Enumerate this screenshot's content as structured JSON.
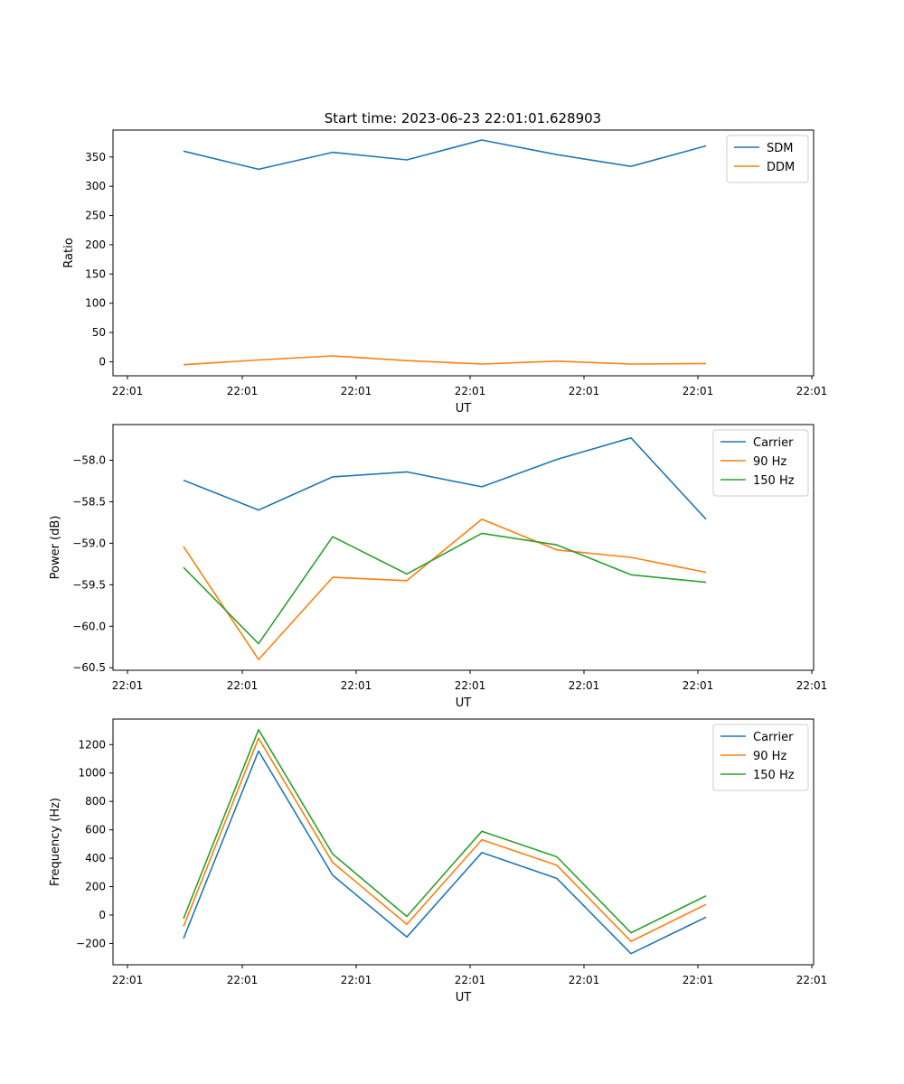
{
  "figure": {
    "title": "Start time: 2023-06-23 22:01:01.628903"
  },
  "chart_data": [
    {
      "type": "line",
      "title": "Start time: 2023-06-23 22:01:01.628903",
      "xlabel": "UT",
      "ylabel": "Ratio",
      "x_tick_labels": [
        "22:01",
        "22:01",
        "22:01",
        "22:01",
        "22:01",
        "22:01",
        "22:01"
      ],
      "y_ticks": [
        0,
        50,
        100,
        150,
        200,
        250,
        300,
        350
      ],
      "ylim": [
        -24,
        396
      ],
      "grid": false,
      "legend_position": "top-right",
      "series": [
        {
          "name": "SDM",
          "color": "#1f77b4",
          "values": [
            360,
            329,
            358,
            345,
            379,
            354,
            334,
            369
          ]
        },
        {
          "name": "DDM",
          "color": "#ff7f0e",
          "values": [
            -5,
            3,
            10,
            2,
            -4,
            1,
            -4,
            -3
          ]
        }
      ]
    },
    {
      "type": "line",
      "title": "",
      "xlabel": "UT",
      "ylabel": "Power (dB)",
      "x_tick_labels": [
        "22:01",
        "22:01",
        "22:01",
        "22:01",
        "22:01",
        "22:01",
        "22:01"
      ],
      "y_ticks": [
        -60.5,
        -60.0,
        -59.5,
        -59.0,
        -58.5,
        -58.0
      ],
      "y_tick_labels": [
        "−60.5",
        "−60.0",
        "−59.5",
        "−59.0",
        "−58.5",
        "−58.0"
      ],
      "ylim": [
        -60.53,
        -57.57
      ],
      "grid": false,
      "legend_position": "top-right",
      "series": [
        {
          "name": "Carrier",
          "color": "#1f77b4",
          "values": [
            -58.24,
            -58.6,
            -58.2,
            -58.14,
            -58.32,
            -57.99,
            -57.73,
            -58.71
          ]
        },
        {
          "name": "90 Hz",
          "color": "#ff7f0e",
          "values": [
            -59.04,
            -60.4,
            -59.41,
            -59.45,
            -58.71,
            -59.08,
            -59.17,
            -59.35
          ]
        },
        {
          "name": "150 Hz",
          "color": "#2ca02c",
          "values": [
            -59.29,
            -60.21,
            -58.92,
            -59.37,
            -58.88,
            -59.02,
            -59.38,
            -59.47
          ]
        }
      ]
    },
    {
      "type": "line",
      "title": "",
      "xlabel": "UT",
      "ylabel": "Frequency (Hz)",
      "x_tick_labels": [
        "22:01",
        "22:01",
        "22:01",
        "22:01",
        "22:01",
        "22:01",
        "22:01"
      ],
      "y_ticks": [
        -200,
        0,
        200,
        400,
        600,
        800,
        1000,
        1200
      ],
      "y_tick_labels": [
        "−200",
        "0",
        "200",
        "400",
        "600",
        "800",
        "1000",
        "1200"
      ],
      "ylim": [
        -350,
        1380
      ],
      "grid": false,
      "legend_position": "top-right",
      "series": [
        {
          "name": "Carrier",
          "color": "#1f77b4",
          "values": [
            -165,
            1155,
            280,
            -155,
            440,
            258,
            -272,
            -15
          ]
        },
        {
          "name": "90 Hz",
          "color": "#ff7f0e",
          "values": [
            -80,
            1245,
            370,
            -65,
            530,
            350,
            -185,
            75
          ]
        },
        {
          "name": "150 Hz",
          "color": "#2ca02c",
          "values": [
            -25,
            1305,
            430,
            -10,
            590,
            410,
            -125,
            135
          ]
        }
      ]
    }
  ]
}
